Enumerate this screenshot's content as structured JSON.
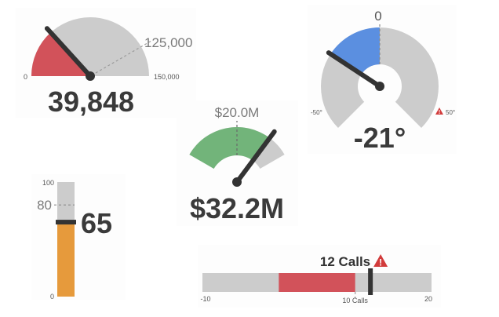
{
  "chart_data": [
    {
      "type": "gauge",
      "style": "semicircle",
      "value": 39848,
      "value_label": "39,848",
      "min": 0,
      "max": 150000,
      "min_label": "0",
      "max_label": "150,000",
      "target": 125000,
      "target_label": "125,000",
      "filled_color": "#d2525a",
      "track_color": "#cccccc"
    },
    {
      "type": "gauge",
      "style": "horseshoe",
      "value": -21,
      "value_label": "-21°",
      "min": -50,
      "max": 50,
      "min_label": "-50°",
      "max_label": "50°",
      "reference": 0,
      "reference_label": "0",
      "filled_color": "#5b8fe0",
      "track_color": "#cccccc",
      "max_alert": true
    },
    {
      "type": "gauge",
      "style": "arc",
      "value": 32.2,
      "value_label": "$32.2M",
      "min": 0,
      "max": 40,
      "target": 20.0,
      "target_label": "$20.0M",
      "filled_color": "#72b47a",
      "track_color": "#cccccc"
    },
    {
      "type": "bullet",
      "orientation": "vertical",
      "value": 65,
      "value_label": "65",
      "min": 0,
      "max": 100,
      "min_label": "0",
      "max_label": "100",
      "target": 80,
      "target_label": "80",
      "filled_color": "#e69a3c",
      "track_color": "#cccccc"
    },
    {
      "type": "bullet",
      "orientation": "horizontal",
      "value": 12,
      "value_label": "12 Calls",
      "min": -10,
      "max": 20,
      "min_label": "-10",
      "max_label": "20",
      "band": [
        0,
        10
      ],
      "target": 10,
      "target_label": "10 Calls",
      "filled_color": "#d2525a",
      "track_color": "#cccccc",
      "alert": true
    }
  ]
}
